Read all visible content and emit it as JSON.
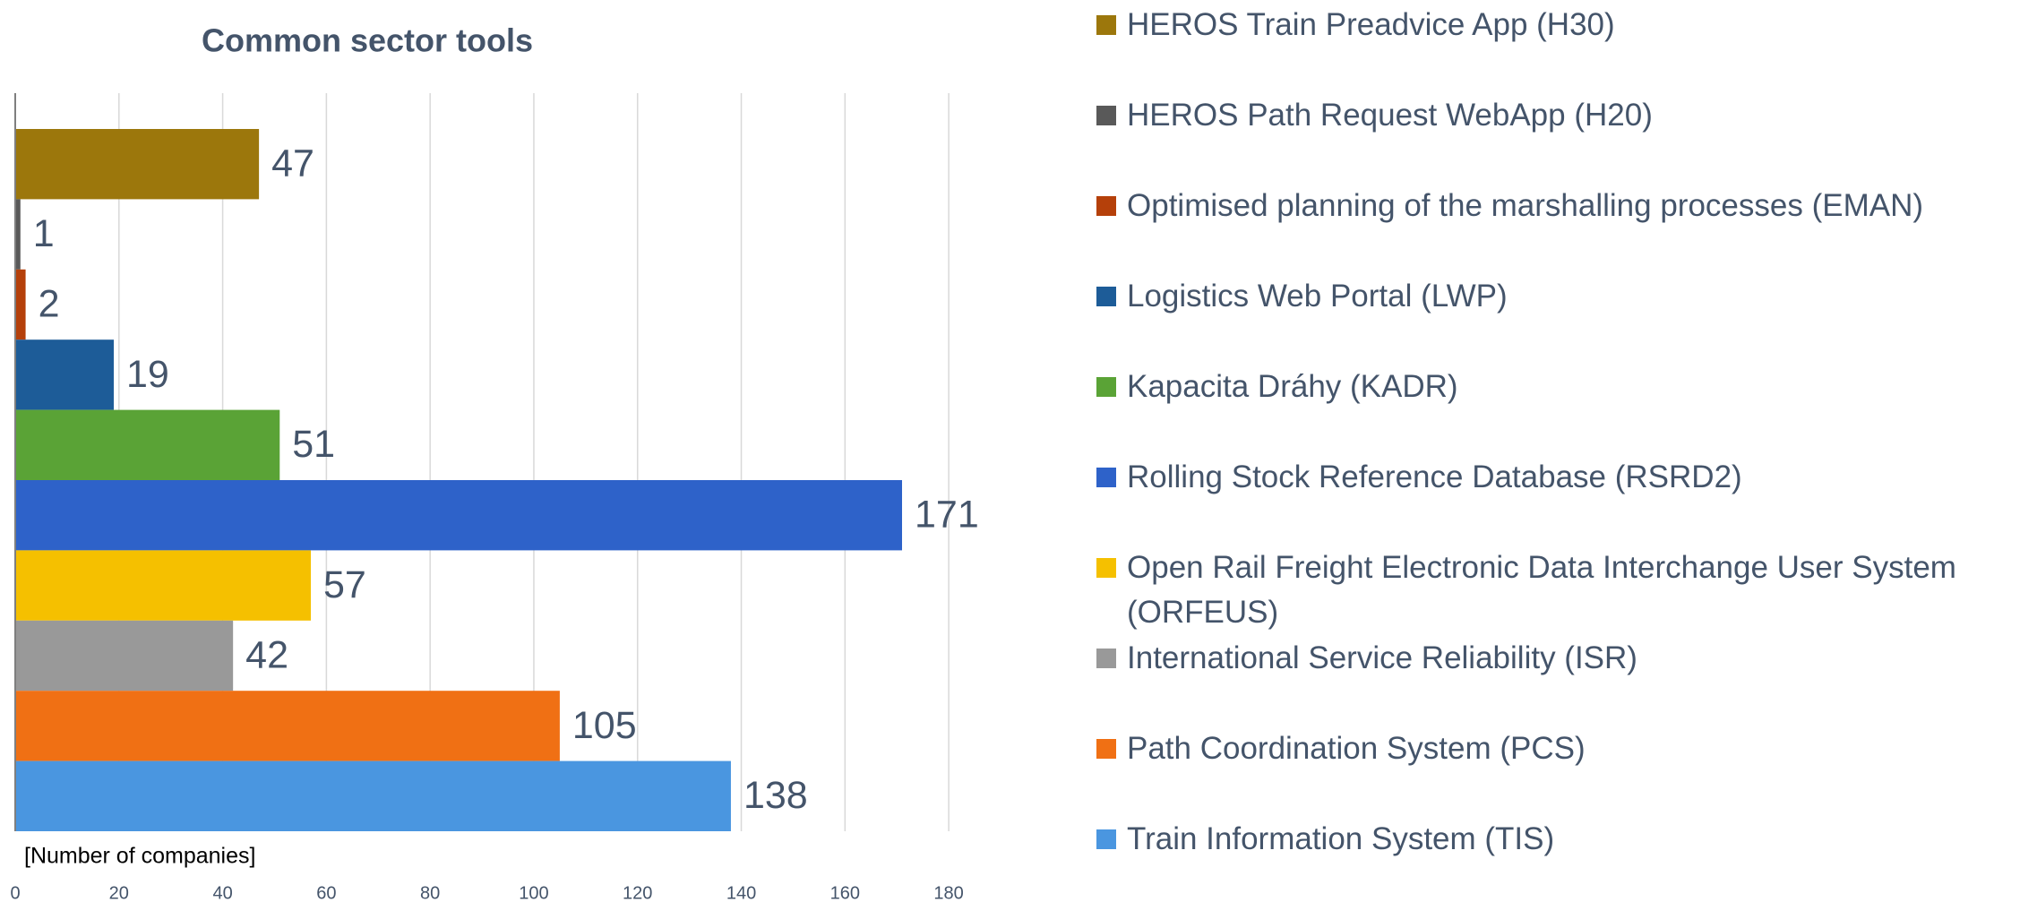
{
  "chart_data": {
    "type": "bar",
    "orientation": "horizontal",
    "title": "Common sector tools",
    "xlabel": "[Number of companies]",
    "xlim": [
      0,
      190
    ],
    "xticks": [
      0,
      20,
      40,
      60,
      80,
      100,
      120,
      140,
      160,
      180
    ],
    "grid": true,
    "legend": "right",
    "series": [
      {
        "name": "HEROS Train Preadvice App (H30)",
        "color": "#9c770c",
        "values": [
          47
        ]
      },
      {
        "name": "HEROS Path Request WebApp (H20)",
        "color": "#595959",
        "values": [
          1
        ]
      },
      {
        "name": "Optimised planning of the marshalling processes (EMAN)",
        "color": "#b5400a",
        "values": [
          2
        ]
      },
      {
        "name": "Logistics Web Portal (LWP)",
        "color": "#1d5c98",
        "values": [
          19
        ]
      },
      {
        "name": "Kapacita Dráhy (KADR)",
        "color": "#5aa336",
        "values": [
          51
        ]
      },
      {
        "name": "Rolling Stock Reference Database (RSRD2)",
        "color": "#2e62c9",
        "values": [
          171
        ]
      },
      {
        "name": "Open Rail Freight Electronic Data Interchange User System (ORFEUS)",
        "color": "#f5c000",
        "values": [
          57
        ]
      },
      {
        "name": "International Service Reliability (ISR)",
        "color": "#999999",
        "values": [
          42
        ]
      },
      {
        "name": "Path Coordination System (PCS)",
        "color": "#f07014",
        "values": [
          105
        ]
      },
      {
        "name": "Train Information System (TIS)",
        "color": "#4a96e0",
        "values": [
          138
        ]
      }
    ]
  }
}
